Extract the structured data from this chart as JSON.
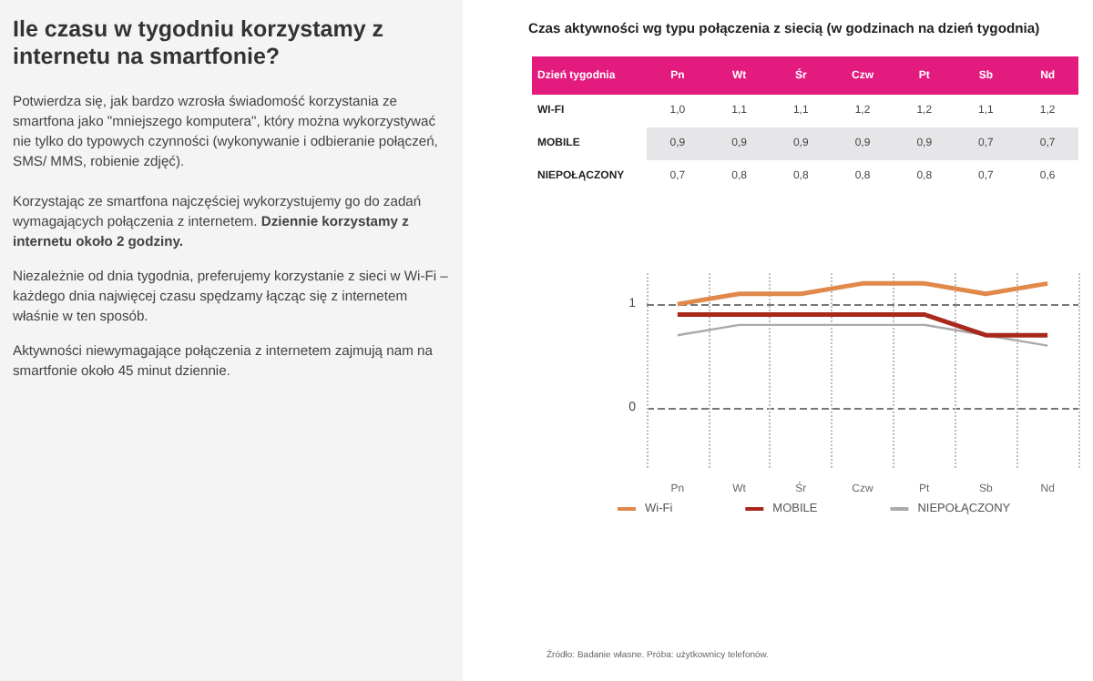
{
  "chart_data": {
    "type": "line",
    "title": "Ile czasu w tygodniu korzystamy z internetu na smartfonie?",
    "subtitle": "Czas aktywności wg typu połączenia z siecią (w godzinach na dzień tygodnia)",
    "legend_title": "Dzień tygodnia",
    "annotations": [
      "Potwierdza się, jak bardzo wzrosła świadomość korzystania ze smartfona jako \"mniejszego komputera\", który można wykorzystywać nie tylko do typowych czynności (wykonywanie i odbieranie połączeń, SMS/ MMS, robienie zdjęć).",
      "Korzystając ze smartfona najczęściej wykorzystujemy go do zadań wymagających połączenia z internetem.",
      "Dziennie korzystamy z internetu około 2 godziny.",
      "Niezależnie od dnia tygodnia, preferujemy korzystanie z sieci w Wi-Fi – każdego dnia najwięcej czasu spędzamy łącząc się z internetem właśnie w ten sposób.",
      "Aktywności niewymagające połączenia z internetem zajmują nam na smartfonie około 45 minut dziennie.",
      "Źródło: Badanie własne. Próba: użytkownicy telefonów.",
      "WI-FI",
      "MOBILE",
      "NIEPOŁĄCZONY"
    ],
    "categories": [
      "Pn",
      "Wt",
      "Śr",
      "Czw",
      "Pt",
      "Sb",
      "Nd"
    ],
    "series": [
      {
        "name": "Wi-Fi",
        "color": "#e0894a",
        "values": [
          1.0,
          1.1,
          1.1,
          1.2,
          1.2,
          1.1,
          1.2
        ],
        "value_labels": [
          "1,0",
          "1,1",
          "1,1",
          "1,2",
          "1,2",
          "1,1",
          "1,2"
        ]
      },
      {
        "name": "MOBILE",
        "color": "#a8281c",
        "values": [
          0.9,
          0.9,
          0.9,
          0.9,
          0.9,
          0.7,
          0.7
        ],
        "value_labels": [
          "0,9",
          "0,9",
          "0,9",
          "0,9",
          "0,9",
          "0,7",
          "0,7"
        ]
      },
      {
        "name": "NIEPOŁĄCZONY",
        "color": "#aaaaaa",
        "values": [
          0.7,
          0.8,
          0.8,
          0.8,
          0.8,
          0.7,
          0.6
        ],
        "value_labels": [
          "0,7",
          "0,8",
          "0,8",
          "0,8",
          "0,8",
          "0,7",
          "0,6"
        ]
      }
    ],
    "ylim": [
      -0.6,
      1.3
    ],
    "yticks": [
      0,
      1
    ],
    "grid": true,
    "legend": "bottom",
    "marker": "none",
    "line_style": "solid"
  }
}
